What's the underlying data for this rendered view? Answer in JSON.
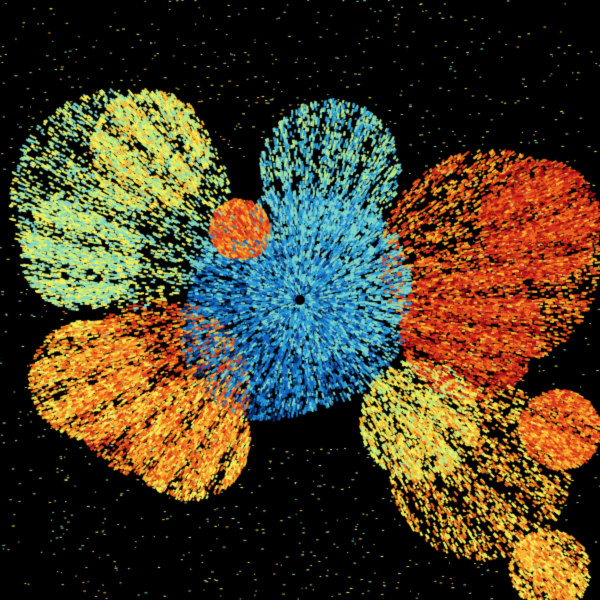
{
  "image": {
    "kind": "radar-scan",
    "background": "#000000",
    "colormap": [
      "#08306b",
      "#1565c0",
      "#29a0d8",
      "#7fd6c8",
      "#b8e986",
      "#f4f05a",
      "#f7b733",
      "#ee6a1c",
      "#d7301f",
      "#a50f15"
    ]
  }
}
